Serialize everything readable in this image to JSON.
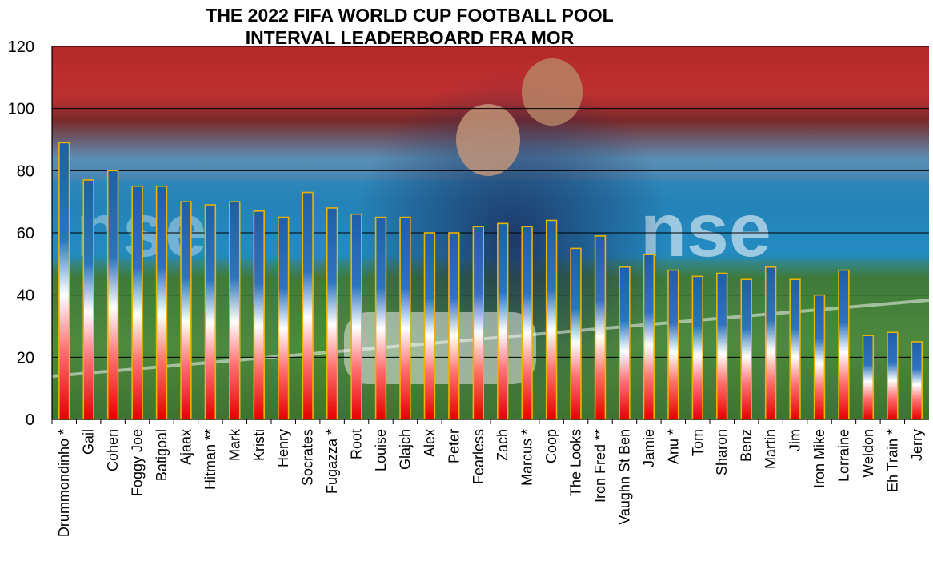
{
  "chart_data": {
    "type": "bar",
    "title_lines": [
      "THE 2022 FIFA WORLD CUP FOOTBALL POOL",
      "INTERVAL LEADERBOARD FRA MOR"
    ],
    "ylim": [
      0,
      120
    ],
    "yticks": [
      "0",
      "20",
      "40",
      "60",
      "80",
      "100",
      "120"
    ],
    "grid": true,
    "background": "photo of football players celebrating in a stadium",
    "categories": [
      "Drummondinho *",
      "Gail",
      "Cohen",
      "Foggy Joe",
      "Batigoal",
      "Ajaax",
      "Hitman **",
      "Mark",
      "Kristi",
      "Henry",
      "Socrates",
      "Fugazza *",
      "Root",
      "Louise",
      "Glajch",
      "Alex",
      "Peter",
      "Fearless",
      "Zach",
      "Marcus *",
      "Coop",
      "The Looks",
      "Iron Fred **",
      "Vaughn St Ben",
      "Jamie",
      "Anu *",
      "Tom",
      "Sharon",
      "Benz",
      "Martin",
      "Jim",
      "Iron Mike",
      "Lorraine",
      "Weldon",
      "Eh Train *",
      "Jerry"
    ],
    "values": [
      89,
      77,
      80,
      75,
      75,
      70,
      69,
      70,
      67,
      65,
      73,
      68,
      66,
      65,
      65,
      60,
      60,
      62,
      63,
      62,
      64,
      55,
      59,
      49,
      53,
      48,
      46,
      47,
      45,
      49,
      45,
      40,
      48,
      27,
      28,
      25
    ],
    "bar_colors": {
      "top": "#1f5fa8",
      "middle": "#ffffff",
      "bottom": "#e60000",
      "edge": "#e8b400"
    }
  }
}
